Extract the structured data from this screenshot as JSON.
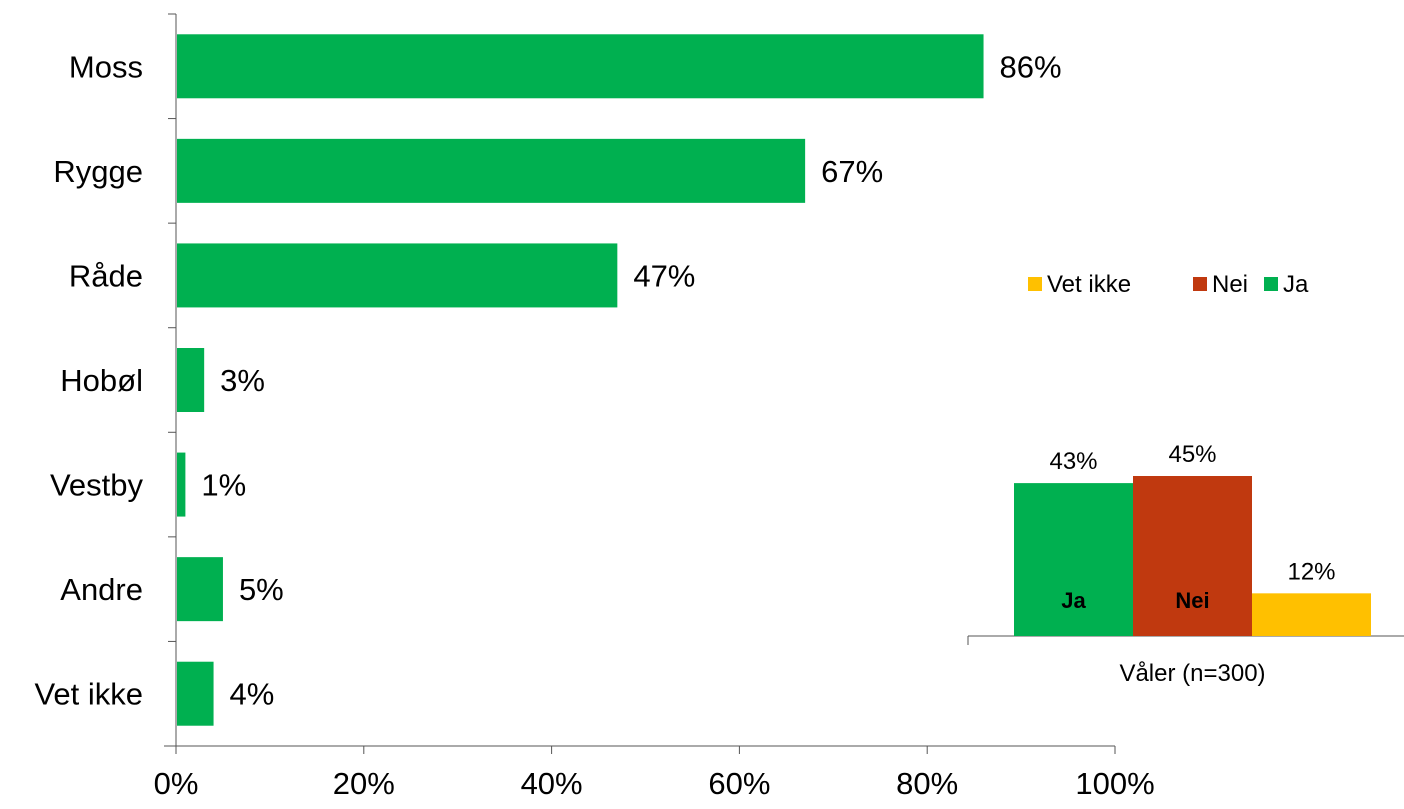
{
  "colors": {
    "ja": "#00b050",
    "nei": "#c0390f",
    "vet_ikke": "#ffc000",
    "axis": "#555555"
  },
  "chart_data": [
    {
      "type": "bar",
      "orientation": "horizontal",
      "categories": [
        "Moss",
        "Rygge",
        "Råde",
        "Hobøl",
        "Vestby",
        "Andre",
        "Vet ikke"
      ],
      "values": [
        86,
        67,
        47,
        3,
        1,
        5,
        4
      ],
      "value_labels": [
        "86%",
        "67%",
        "47%",
        "3%",
        "1%",
        "5%",
        "4%"
      ],
      "xlim": [
        0,
        100
      ],
      "x_ticks": [
        0,
        20,
        40,
        60,
        80,
        100
      ],
      "x_tick_labels": [
        "0%",
        "20%",
        "40%",
        "60%",
        "80%",
        "100%"
      ],
      "color": "#00b050",
      "grid": false
    },
    {
      "type": "bar",
      "orientation": "vertical",
      "category": "Våler (n=300)",
      "series": [
        {
          "name": "Ja",
          "value": 43,
          "value_label": "43%",
          "bar_label": "Ja",
          "color": "#00b050"
        },
        {
          "name": "Nei",
          "value": 45,
          "value_label": "45%",
          "bar_label": "Nei",
          "color": "#c0390f"
        },
        {
          "name": "Vet ikke",
          "value": 12,
          "value_label": "12%",
          "bar_label": "",
          "color": "#ffc000"
        }
      ],
      "legend": {
        "position": "top-right",
        "order": [
          "Vet ikke",
          "Nei",
          "Ja"
        ]
      }
    }
  ]
}
